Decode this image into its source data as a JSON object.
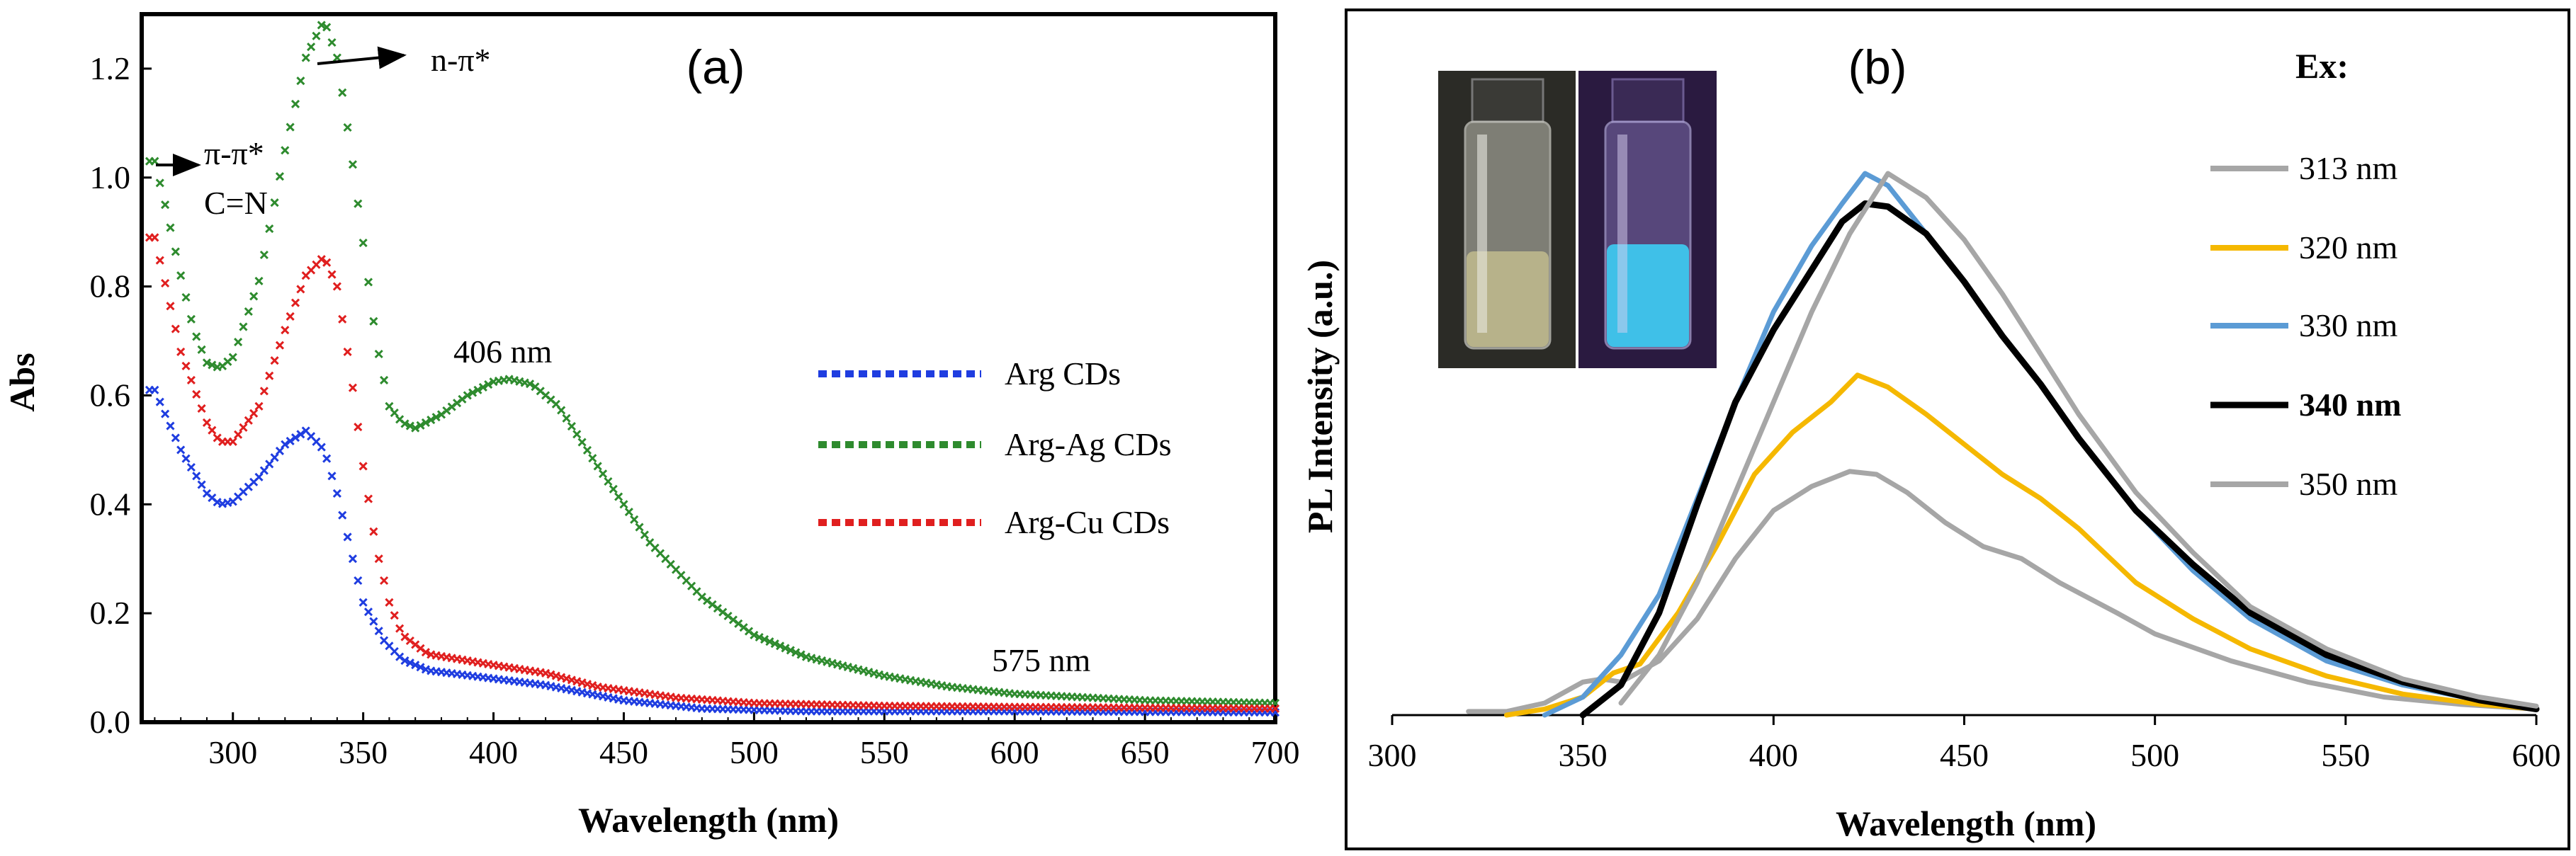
{
  "figure": {
    "panel_a_label": "(a)",
    "panel_b_label": "(b)"
  },
  "chart_data": [
    {
      "type": "scatter",
      "panel": "(a)",
      "xlabel": "Wavelength (nm)",
      "ylabel": "Abs",
      "xlim": [
        265,
        700
      ],
      "ylim": [
        0,
        1.3
      ],
      "xticks": [
        300,
        350,
        400,
        450,
        500,
        550,
        600,
        650,
        700
      ],
      "yticks": [
        "0.0",
        "0.2",
        "0.4",
        "0.6",
        "0.8",
        "1.0",
        "1.2"
      ],
      "annotations": {
        "n_pi": "n-π*",
        "pi_pi": "π-π*",
        "cn": "C=N",
        "peak406": "406 nm",
        "peak575": "575 nm"
      },
      "series": [
        {
          "name": "Arg CDs",
          "color": "#1f3de0",
          "points": [
            [
              270,
              0.61
            ],
            [
              280,
              0.5
            ],
            [
              290,
              0.42
            ],
            [
              295,
              0.4
            ],
            [
              300,
              0.405
            ],
            [
              310,
              0.45
            ],
            [
              320,
              0.51
            ],
            [
              328,
              0.535
            ],
            [
              335,
              0.5
            ],
            [
              340,
              0.42
            ],
            [
              345,
              0.32
            ],
            [
              350,
              0.22
            ],
            [
              358,
              0.15
            ],
            [
              365,
              0.115
            ],
            [
              375,
              0.095
            ],
            [
              400,
              0.08
            ],
            [
              420,
              0.068
            ],
            [
              450,
              0.04
            ],
            [
              480,
              0.025
            ],
            [
              520,
              0.02
            ],
            [
              600,
              0.02
            ],
            [
              700,
              0.018
            ]
          ]
        },
        {
          "name": "Arg-Ag CDs",
          "color": "#2e8b2e",
          "points": [
            [
              270,
              1.03
            ],
            [
              275,
              0.93
            ],
            [
              280,
              0.82
            ],
            [
              285,
              0.72
            ],
            [
              290,
              0.66
            ],
            [
              295,
              0.65
            ],
            [
              300,
              0.67
            ],
            [
              310,
              0.81
            ],
            [
              320,
              1.05
            ],
            [
              328,
              1.22
            ],
            [
              335,
              1.29
            ],
            [
              340,
              1.22
            ],
            [
              345,
              1.06
            ],
            [
              350,
              0.88
            ],
            [
              355,
              0.7
            ],
            [
              360,
              0.58
            ],
            [
              365,
              0.55
            ],
            [
              370,
              0.54
            ],
            [
              380,
              0.565
            ],
            [
              390,
              0.6
            ],
            [
              400,
              0.625
            ],
            [
              406,
              0.63
            ],
            [
              415,
              0.62
            ],
            [
              425,
              0.58
            ],
            [
              440,
              0.47
            ],
            [
              460,
              0.33
            ],
            [
              480,
              0.23
            ],
            [
              500,
              0.16
            ],
            [
              520,
              0.12
            ],
            [
              550,
              0.085
            ],
            [
              575,
              0.065
            ],
            [
              600,
              0.052
            ],
            [
              650,
              0.04
            ],
            [
              700,
              0.035
            ]
          ]
        },
        {
          "name": "Arg-Cu CDs",
          "color": "#e01f1f",
          "points": [
            [
              270,
              0.89
            ],
            [
              280,
              0.68
            ],
            [
              290,
              0.55
            ],
            [
              295,
              0.515
            ],
            [
              300,
              0.515
            ],
            [
              310,
              0.58
            ],
            [
              320,
              0.72
            ],
            [
              328,
              0.82
            ],
            [
              335,
              0.855
            ],
            [
              340,
              0.8
            ],
            [
              345,
              0.65
            ],
            [
              350,
              0.47
            ],
            [
              355,
              0.32
            ],
            [
              360,
              0.22
            ],
            [
              365,
              0.16
            ],
            [
              375,
              0.125
            ],
            [
              400,
              0.105
            ],
            [
              420,
              0.09
            ],
            [
              440,
              0.065
            ],
            [
              470,
              0.045
            ],
            [
              500,
              0.035
            ],
            [
              550,
              0.03
            ],
            [
              600,
              0.028
            ],
            [
              700,
              0.025
            ]
          ]
        }
      ]
    },
    {
      "type": "line",
      "panel": "(b)",
      "xlabel": "Wavelength (nm)",
      "ylabel": "PL Intensity (a.u.)",
      "xlim": [
        300,
        600
      ],
      "ylim": [
        0,
        1.0
      ],
      "xticks": [
        300,
        350,
        400,
        450,
        500,
        550,
        600
      ],
      "legend_title": "Ex:",
      "photo": "vial-photo",
      "series": [
        {
          "name": "313 nm",
          "color": "#a6a6a6",
          "bold": false,
          "points": [
            [
              320,
              0.006
            ],
            [
              330,
              0.006
            ],
            [
              340,
              0.02
            ],
            [
              350,
              0.055
            ],
            [
              355,
              0.06
            ],
            [
              360,
              0.055
            ],
            [
              370,
              0.09
            ],
            [
              380,
              0.16
            ],
            [
              390,
              0.26
            ],
            [
              400,
              0.34
            ],
            [
              410,
              0.38
            ],
            [
              420,
              0.405
            ],
            [
              427,
              0.4
            ],
            [
              435,
              0.37
            ],
            [
              445,
              0.32
            ],
            [
              455,
              0.28
            ],
            [
              465,
              0.26
            ],
            [
              475,
              0.22
            ],
            [
              490,
              0.17
            ],
            [
              500,
              0.135
            ],
            [
              520,
              0.09
            ],
            [
              540,
              0.055
            ],
            [
              560,
              0.03
            ],
            [
              580,
              0.018
            ],
            [
              600,
              0.01
            ]
          ]
        },
        {
          "name": "320 nm",
          "color": "#f5b800",
          "bold": false,
          "points": [
            [
              330,
              0.0
            ],
            [
              340,
              0.01
            ],
            [
              350,
              0.03
            ],
            [
              358,
              0.07
            ],
            [
              365,
              0.085
            ],
            [
              375,
              0.17
            ],
            [
              385,
              0.28
            ],
            [
              395,
              0.4
            ],
            [
              405,
              0.47
            ],
            [
              415,
              0.52
            ],
            [
              422,
              0.565
            ],
            [
              430,
              0.545
            ],
            [
              440,
              0.5
            ],
            [
              450,
              0.45
            ],
            [
              460,
              0.4
            ],
            [
              470,
              0.36
            ],
            [
              480,
              0.31
            ],
            [
              495,
              0.22
            ],
            [
              510,
              0.16
            ],
            [
              525,
              0.11
            ],
            [
              545,
              0.065
            ],
            [
              565,
              0.035
            ],
            [
              585,
              0.018
            ],
            [
              600,
              0.01
            ]
          ]
        },
        {
          "name": "330 nm",
          "color": "#5b9bd5",
          "bold": false,
          "points": [
            [
              340,
              0.0
            ],
            [
              350,
              0.03
            ],
            [
              360,
              0.1
            ],
            [
              370,
              0.2
            ],
            [
              380,
              0.36
            ],
            [
              390,
              0.52
            ],
            [
              400,
              0.67
            ],
            [
              410,
              0.78
            ],
            [
              418,
              0.85
            ],
            [
              424,
              0.9
            ],
            [
              430,
              0.88
            ],
            [
              440,
              0.8
            ],
            [
              450,
              0.72
            ],
            [
              460,
              0.63
            ],
            [
              470,
              0.55
            ],
            [
              480,
              0.46
            ],
            [
              495,
              0.34
            ],
            [
              510,
              0.24
            ],
            [
              525,
              0.16
            ],
            [
              545,
              0.09
            ],
            [
              565,
              0.05
            ],
            [
              585,
              0.025
            ],
            [
              600,
              0.012
            ]
          ]
        },
        {
          "name": "340 nm",
          "color": "#000000",
          "bold": true,
          "points": [
            [
              350,
              0.0
            ],
            [
              360,
              0.05
            ],
            [
              370,
              0.17
            ],
            [
              380,
              0.35
            ],
            [
              390,
              0.52
            ],
            [
              400,
              0.64
            ],
            [
              410,
              0.74
            ],
            [
              418,
              0.82
            ],
            [
              424,
              0.85
            ],
            [
              430,
              0.845
            ],
            [
              440,
              0.8
            ],
            [
              450,
              0.72
            ],
            [
              460,
              0.63
            ],
            [
              470,
              0.55
            ],
            [
              480,
              0.46
            ],
            [
              495,
              0.34
            ],
            [
              510,
              0.25
            ],
            [
              525,
              0.17
            ],
            [
              545,
              0.1
            ],
            [
              565,
              0.055
            ],
            [
              585,
              0.025
            ],
            [
              600,
              0.01
            ]
          ]
        },
        {
          "name": "350 nm",
          "color": "#a6a6a6",
          "bold": false,
          "points": [
            [
              360,
              0.02
            ],
            [
              370,
              0.1
            ],
            [
              380,
              0.22
            ],
            [
              390,
              0.37
            ],
            [
              400,
              0.52
            ],
            [
              410,
              0.67
            ],
            [
              420,
              0.8
            ],
            [
              430,
              0.9
            ],
            [
              440,
              0.86
            ],
            [
              450,
              0.79
            ],
            [
              460,
              0.7
            ],
            [
              470,
              0.6
            ],
            [
              480,
              0.5
            ],
            [
              495,
              0.37
            ],
            [
              510,
              0.27
            ],
            [
              525,
              0.18
            ],
            [
              545,
              0.11
            ],
            [
              565,
              0.06
            ],
            [
              585,
              0.03
            ],
            [
              600,
              0.015
            ]
          ]
        }
      ]
    }
  ]
}
